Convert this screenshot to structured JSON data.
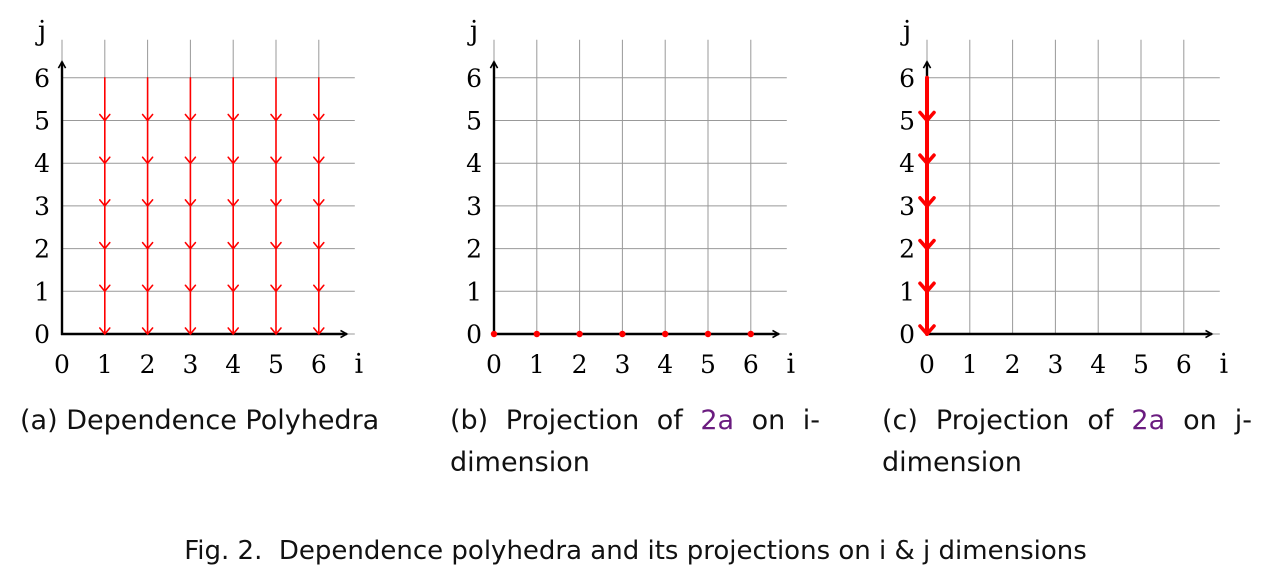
{
  "figure": {
    "label": "Fig. 2.",
    "caption": "Dependence polyhedra and its projections on i & j dimensions"
  },
  "subfigures": [
    {
      "tag": "(a)",
      "caption_text": "Dependence Polyhedra",
      "caption_ref": "",
      "caption_suffix": ""
    },
    {
      "tag": "(b)",
      "caption_text": "Projection of ",
      "caption_ref": "2a",
      "caption_suffix": " on i-dimension"
    },
    {
      "tag": "(c)",
      "caption_text": "Projection of ",
      "caption_ref": "2a",
      "caption_suffix": " on j-dimension"
    }
  ],
  "colors": {
    "grid": "#999999",
    "axis": "#000000",
    "dependence": "#ff0000",
    "reference": "#6a1b7f"
  },
  "chart_data": [
    {
      "type": "diagram",
      "subfigure": "a",
      "xlabel": "i",
      "ylabel": "j",
      "x_ticks": [
        0,
        1,
        2,
        3,
        4,
        5,
        6
      ],
      "y_ticks": [
        0,
        1,
        2,
        3,
        4,
        5,
        6
      ],
      "xlim": [
        0,
        6
      ],
      "ylim": [
        0,
        6
      ],
      "grid": true,
      "dependence_chains": [
        {
          "i": 1,
          "j_from": 6,
          "j_to": 0,
          "arrowheads_at_j": [
            5,
            4,
            3,
            2,
            1,
            0
          ]
        },
        {
          "i": 2,
          "j_from": 6,
          "j_to": 0,
          "arrowheads_at_j": [
            5,
            4,
            3,
            2,
            1,
            0
          ]
        },
        {
          "i": 3,
          "j_from": 6,
          "j_to": 0,
          "arrowheads_at_j": [
            5,
            4,
            3,
            2,
            1,
            0
          ]
        },
        {
          "i": 4,
          "j_from": 6,
          "j_to": 0,
          "arrowheads_at_j": [
            5,
            4,
            3,
            2,
            1,
            0
          ]
        },
        {
          "i": 5,
          "j_from": 6,
          "j_to": 0,
          "arrowheads_at_j": [
            5,
            4,
            3,
            2,
            1,
            0
          ]
        },
        {
          "i": 6,
          "j_from": 6,
          "j_to": 0,
          "arrowheads_at_j": [
            5,
            4,
            3,
            2,
            1,
            0
          ]
        }
      ],
      "points": []
    },
    {
      "type": "diagram",
      "subfigure": "b",
      "xlabel": "i",
      "ylabel": "j",
      "x_ticks": [
        0,
        1,
        2,
        3,
        4,
        5,
        6
      ],
      "y_ticks": [
        0,
        1,
        2,
        3,
        4,
        5,
        6
      ],
      "xlim": [
        0,
        6
      ],
      "ylim": [
        0,
        6
      ],
      "grid": true,
      "dependence_chains": [],
      "points": [
        {
          "i": 0,
          "j": 0
        },
        {
          "i": 1,
          "j": 0
        },
        {
          "i": 2,
          "j": 0
        },
        {
          "i": 3,
          "j": 0
        },
        {
          "i": 4,
          "j": 0
        },
        {
          "i": 5,
          "j": 0
        },
        {
          "i": 6,
          "j": 0
        }
      ]
    },
    {
      "type": "diagram",
      "subfigure": "c",
      "xlabel": "i",
      "ylabel": "j",
      "x_ticks": [
        0,
        1,
        2,
        3,
        4,
        5,
        6
      ],
      "y_ticks": [
        0,
        1,
        2,
        3,
        4,
        5,
        6
      ],
      "xlim": [
        0,
        6
      ],
      "ylim": [
        0,
        6
      ],
      "grid": true,
      "dependence_chains": [
        {
          "i": 0,
          "j_from": 6,
          "j_to": 0,
          "arrowheads_at_j": [
            5,
            4,
            3,
            2,
            1,
            0
          ],
          "emphasis": "thick"
        }
      ],
      "points": []
    }
  ]
}
